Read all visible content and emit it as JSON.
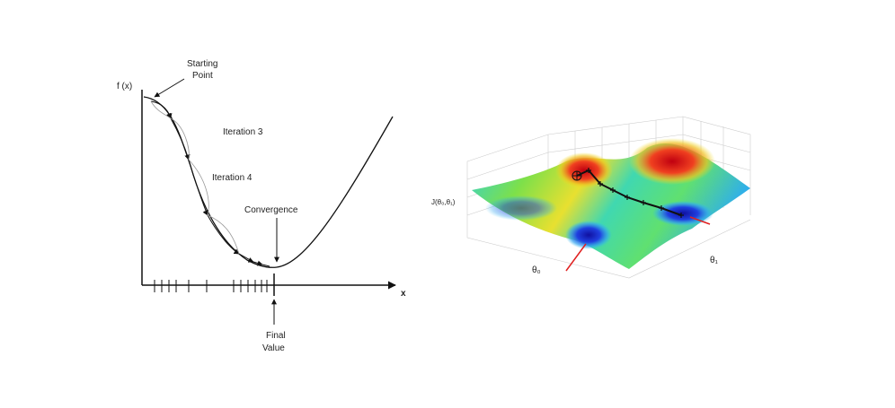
{
  "left": {
    "y_label": "f (x)",
    "x_label": "x",
    "start": [
      "Starting",
      "Point"
    ],
    "iteration3": "Iteration 3",
    "iteration4": "Iteration 4",
    "convergence": "Convergence",
    "final": [
      "Final",
      "Value"
    ]
  },
  "right": {
    "z_label": "J(θ₀,θ₁)",
    "x_label": "θ₀",
    "y_label": "θ₁"
  }
}
